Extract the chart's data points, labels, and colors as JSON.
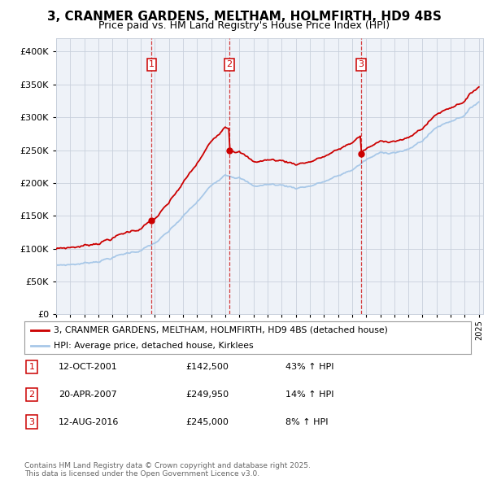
{
  "title": "3, CRANMER GARDENS, MELTHAM, HOLMFIRTH, HD9 4BS",
  "subtitle": "Price paid vs. HM Land Registry's House Price Index (HPI)",
  "ylim": [
    0,
    420000
  ],
  "yticks": [
    0,
    50000,
    100000,
    150000,
    200000,
    250000,
    300000,
    350000,
    400000
  ],
  "xlim": [
    1995,
    2025.3
  ],
  "sale_dates": [
    2001.78,
    2007.3,
    2016.62
  ],
  "sale_prices": [
    142500,
    249950,
    245000
  ],
  "sale_labels": [
    "1",
    "2",
    "3"
  ],
  "legend_red": "3, CRANMER GARDENS, MELTHAM, HOLMFIRTH, HD9 4BS (detached house)",
  "legend_blue": "HPI: Average price, detached house, Kirklees",
  "table": [
    {
      "num": "1",
      "date": "12-OCT-2001",
      "price": "£142,500",
      "change": "43% ↑ HPI"
    },
    {
      "num": "2",
      "date": "20-APR-2007",
      "price": "£249,950",
      "change": "14% ↑ HPI"
    },
    {
      "num": "3",
      "date": "12-AUG-2016",
      "price": "£245,000",
      "change": "8% ↑ HPI"
    }
  ],
  "footnote": "Contains HM Land Registry data © Crown copyright and database right 2025.\nThis data is licensed under the Open Government Licence v3.0.",
  "red_color": "#cc0000",
  "blue_color": "#a8c8e8",
  "grid_color": "#c8d0dc",
  "bg_color": "#eef2f8",
  "title_fontsize": 11,
  "subtitle_fontsize": 9
}
